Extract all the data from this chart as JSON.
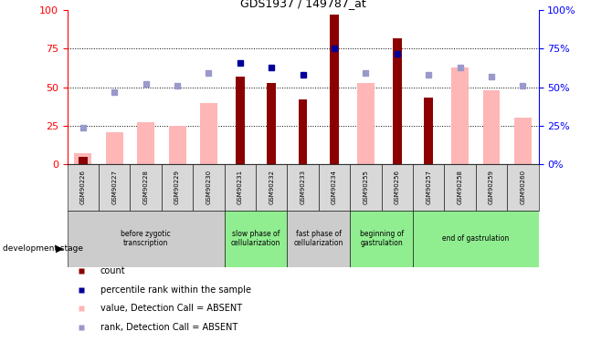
{
  "title": "GDS1937 / 149787_at",
  "samples": [
    "GSM90226",
    "GSM90227",
    "GSM90228",
    "GSM90229",
    "GSM90230",
    "GSM90231",
    "GSM90232",
    "GSM90233",
    "GSM90234",
    "GSM90255",
    "GSM90256",
    "GSM90257",
    "GSM90258",
    "GSM90259",
    "GSM90260"
  ],
  "count_bars": [
    5,
    0,
    0,
    0,
    0,
    57,
    53,
    42,
    97,
    0,
    82,
    43,
    0,
    0,
    0
  ],
  "value_absent": [
    7,
    21,
    27,
    25,
    40,
    0,
    0,
    0,
    0,
    53,
    0,
    0,
    63,
    48,
    30
  ],
  "rank_present": [
    null,
    null,
    null,
    null,
    null,
    66,
    63,
    58,
    75,
    null,
    72,
    null,
    null,
    null,
    null
  ],
  "rank_absent": [
    24,
    47,
    52,
    51,
    59,
    null,
    null,
    null,
    null,
    59,
    null,
    58,
    63,
    57,
    51
  ],
  "stage_groups": [
    {
      "label": "before zygotic\ntranscription",
      "start": 0,
      "end": 5,
      "color": "#cccccc"
    },
    {
      "label": "slow phase of\ncellularization",
      "start": 5,
      "end": 7,
      "color": "#90ee90"
    },
    {
      "label": "fast phase of\ncellularization",
      "start": 7,
      "end": 9,
      "color": "#cccccc"
    },
    {
      "label": "beginning of\ngastrulation",
      "start": 9,
      "end": 11,
      "color": "#90ee90"
    },
    {
      "label": "end of gastrulation",
      "start": 11,
      "end": 15,
      "color": "#90ee90"
    }
  ],
  "bar_color_dark_red": "#8B0000",
  "bar_color_pink": "#ffb6b6",
  "dot_color_blue": "#000099",
  "dot_color_light_blue": "#9999cc",
  "ylim": [
    0,
    100
  ],
  "grid_lines": [
    25,
    50,
    75
  ],
  "legend_items": [
    {
      "label": "count",
      "color": "#8B0000"
    },
    {
      "label": "percentile rank within the sample",
      "color": "#000099"
    },
    {
      "label": "value, Detection Call = ABSENT",
      "color": "#ffb6b6"
    },
    {
      "label": "rank, Detection Call = ABSENT",
      "color": "#9999cc"
    }
  ]
}
